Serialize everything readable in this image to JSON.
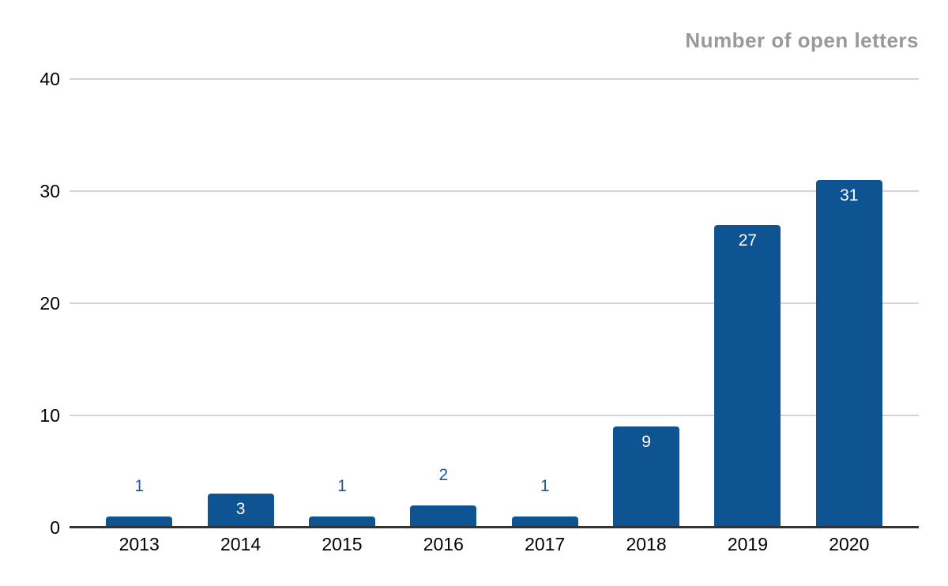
{
  "chart_data": {
    "type": "bar",
    "title": "Number of open letters",
    "categories": [
      "2013",
      "2014",
      "2015",
      "2016",
      "2017",
      "2018",
      "2019",
      "2020"
    ],
    "values": [
      1,
      3,
      1,
      2,
      1,
      9,
      27,
      31
    ],
    "xlabel": "",
    "ylabel": "",
    "y_ticks": [
      0,
      10,
      20,
      30,
      40
    ],
    "ylim": [
      0,
      40
    ],
    "grid": true,
    "legend": "none",
    "bar_labels": true,
    "title_position": "top-right"
  },
  "colors": {
    "bar": "#0e5493",
    "label_inside": "#ffffff",
    "label_outside": "#1a5a9a",
    "title": "#999999",
    "gridline": "#d3d3d3",
    "axis": "#333333",
    "tick_text": "#000000",
    "background": "#ffffff"
  }
}
